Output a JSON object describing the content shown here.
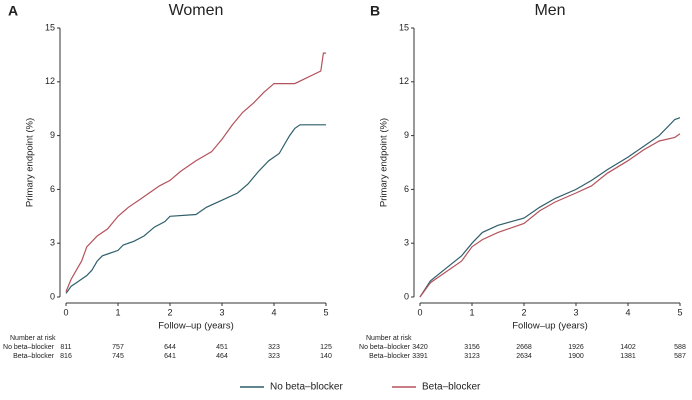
{
  "chart_data": [
    {
      "type": "line",
      "panel": "A",
      "title": "Women",
      "xlabel": "Follow–up (years)",
      "ylabel": "Primary endpoint (%)",
      "xlim": [
        0,
        5
      ],
      "xticks": [
        0,
        1,
        2,
        3,
        4,
        5
      ],
      "ylim": [
        0,
        15
      ],
      "yticks": [
        0,
        3,
        6,
        9,
        12,
        15
      ],
      "series": [
        {
          "name": "No beta–blocker",
          "color": "#2f5f6b",
          "x": [
            0,
            0.1,
            0.2,
            0.3,
            0.4,
            0.5,
            0.6,
            0.7,
            0.8,
            1.0,
            1.1,
            1.3,
            1.5,
            1.7,
            1.9,
            2.0,
            2.5,
            2.7,
            3.0,
            3.3,
            3.5,
            3.7,
            3.9,
            4.1,
            4.3,
            4.4,
            4.5,
            5.0
          ],
          "values": [
            0.2,
            0.6,
            0.8,
            1.0,
            1.2,
            1.5,
            2.0,
            2.3,
            2.4,
            2.6,
            2.9,
            3.1,
            3.4,
            3.9,
            4.2,
            4.5,
            4.6,
            5.0,
            5.4,
            5.8,
            6.3,
            7.0,
            7.6,
            8.0,
            9.0,
            9.4,
            9.6,
            9.6
          ]
        },
        {
          "name": "Beta–blocker",
          "color": "#b4525b",
          "x": [
            0,
            0.1,
            0.2,
            0.3,
            0.4,
            0.5,
            0.6,
            0.8,
            1.0,
            1.2,
            1.4,
            1.6,
            1.8,
            2.0,
            2.2,
            2.5,
            2.8,
            3.0,
            3.2,
            3.4,
            3.6,
            3.8,
            4.0,
            4.4,
            4.9,
            4.95,
            5.0
          ],
          "values": [
            0.3,
            1.0,
            1.5,
            2.0,
            2.8,
            3.1,
            3.4,
            3.8,
            4.5,
            5.0,
            5.4,
            5.8,
            6.2,
            6.5,
            7.0,
            7.6,
            8.1,
            8.8,
            9.6,
            10.3,
            10.8,
            11.4,
            11.9,
            11.9,
            12.6,
            13.6,
            13.6
          ]
        }
      ],
      "risk_table": {
        "title": "Number at risk",
        "rows": [
          [
            811,
            757,
            644,
            451,
            323,
            125
          ],
          [
            816,
            745,
            641,
            464,
            323,
            140
          ]
        ]
      }
    },
    {
      "type": "line",
      "panel": "B",
      "title": "Men",
      "xlabel": "Follow–up (years)",
      "ylabel": "Primary endpoint (%)",
      "xlim": [
        0,
        5
      ],
      "xticks": [
        0,
        1,
        2,
        3,
        4,
        5
      ],
      "ylim": [
        0,
        15
      ],
      "yticks": [
        0,
        3,
        6,
        9,
        12,
        15
      ],
      "series": [
        {
          "name": "No beta–blocker",
          "color": "#2f5f6b",
          "x": [
            0,
            0.2,
            0.5,
            0.8,
            1.0,
            1.2,
            1.5,
            2.0,
            2.3,
            2.6,
            3.0,
            3.3,
            3.6,
            4.0,
            4.3,
            4.6,
            4.9,
            5.0
          ],
          "values": [
            0,
            0.9,
            1.6,
            2.3,
            3.0,
            3.6,
            4.0,
            4.4,
            5.0,
            5.5,
            6.0,
            6.5,
            7.1,
            7.8,
            8.4,
            9.0,
            9.9,
            10.0
          ]
        },
        {
          "name": "Beta–blocker",
          "color": "#b4525b",
          "x": [
            0,
            0.2,
            0.5,
            0.8,
            1.0,
            1.2,
            1.5,
            2.0,
            2.3,
            2.6,
            3.0,
            3.3,
            3.6,
            4.0,
            4.3,
            4.6,
            4.9,
            5.0
          ],
          "values": [
            0,
            0.8,
            1.4,
            2.0,
            2.8,
            3.2,
            3.6,
            4.1,
            4.8,
            5.3,
            5.8,
            6.2,
            6.9,
            7.6,
            8.2,
            8.7,
            8.9,
            9.1
          ]
        }
      ],
      "risk_table": {
        "title": "Number at risk",
        "rows": [
          [
            3420,
            3156,
            2668,
            1926,
            1402,
            588
          ],
          [
            3391,
            3123,
            2634,
            1900,
            1381,
            587
          ]
        ]
      }
    }
  ]
}
